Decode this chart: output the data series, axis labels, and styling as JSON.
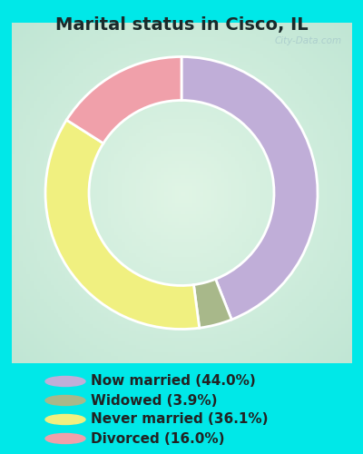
{
  "title": "Marital status in Cisco, IL",
  "slices": [
    44.0,
    3.9,
    36.1,
    16.0
  ],
  "labels": [
    "Now married (44.0%)",
    "Widowed (3.9%)",
    "Never married (36.1%)",
    "Divorced (16.0%)"
  ],
  "colors": [
    "#c0aed8",
    "#a8b88a",
    "#f0f080",
    "#f0a0aa"
  ],
  "bg_cyan": "#00e8e8",
  "bg_chart": "#d0ede0",
  "startangle": 90,
  "donut_width": 0.32,
  "title_fontsize": 14,
  "legend_fontsize": 11,
  "watermark": "City-Data.com"
}
